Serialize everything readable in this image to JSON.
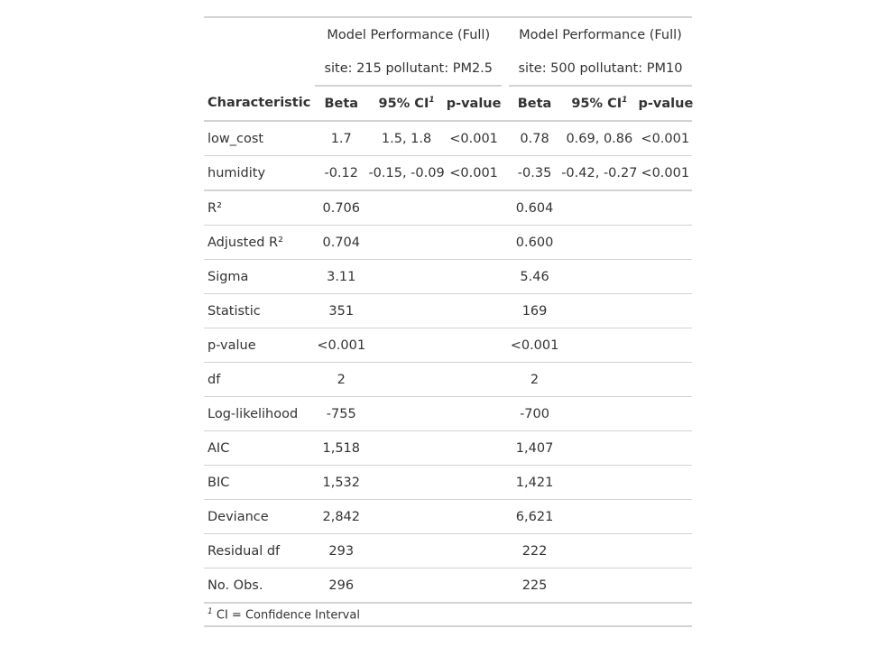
{
  "spanners": [
    {
      "title": "Model Performance (Full)",
      "subtitle": "site: 215 pollutant: PM2.5"
    },
    {
      "title": "Model Performance (Full)",
      "subtitle": "site: 500 pollutant: PM10"
    }
  ],
  "columns": {
    "characteristic": "Characteristic",
    "beta": "Beta",
    "ci": "95% CI",
    "ci_mark": "1",
    "pvalue": "p-value"
  },
  "terms": [
    {
      "label": "low_cost",
      "m1": {
        "beta": "1.7",
        "ci": "1.5, 1.8",
        "p": "<0.001"
      },
      "m2": {
        "beta": "0.78",
        "ci": "0.69, 0.86",
        "p": "<0.001"
      }
    },
    {
      "label": "humidity",
      "m1": {
        "beta": "-0.12",
        "ci": "-0.15, -0.09",
        "p": "<0.001"
      },
      "m2": {
        "beta": "-0.35",
        "ci": "-0.42, -0.27",
        "p": "<0.001"
      }
    }
  ],
  "stats": [
    {
      "label": "R²",
      "m1": "0.706",
      "m2": "0.604"
    },
    {
      "label": "Adjusted R²",
      "m1": "0.704",
      "m2": "0.600"
    },
    {
      "label": "Sigma",
      "m1": "3.11",
      "m2": "5.46"
    },
    {
      "label": "Statistic",
      "m1": "351",
      "m2": "169"
    },
    {
      "label": "p-value",
      "m1": "<0.001",
      "m2": "<0.001"
    },
    {
      "label": "df",
      "m1": "2",
      "m2": "2"
    },
    {
      "label": "Log-likelihood",
      "m1": "-755",
      "m2": "-700"
    },
    {
      "label": "AIC",
      "m1": "1,518",
      "m2": "1,407"
    },
    {
      "label": "BIC",
      "m1": "1,532",
      "m2": "1,421"
    },
    {
      "label": "Deviance",
      "m1": "2,842",
      "m2": "6,621"
    },
    {
      "label": "Residual df",
      "m1": "293",
      "m2": "222"
    },
    {
      "label": "No. Obs.",
      "m1": "296",
      "m2": "225"
    }
  ],
  "footnote": {
    "mark": "1",
    "text": "CI = Confidence Interval"
  }
}
